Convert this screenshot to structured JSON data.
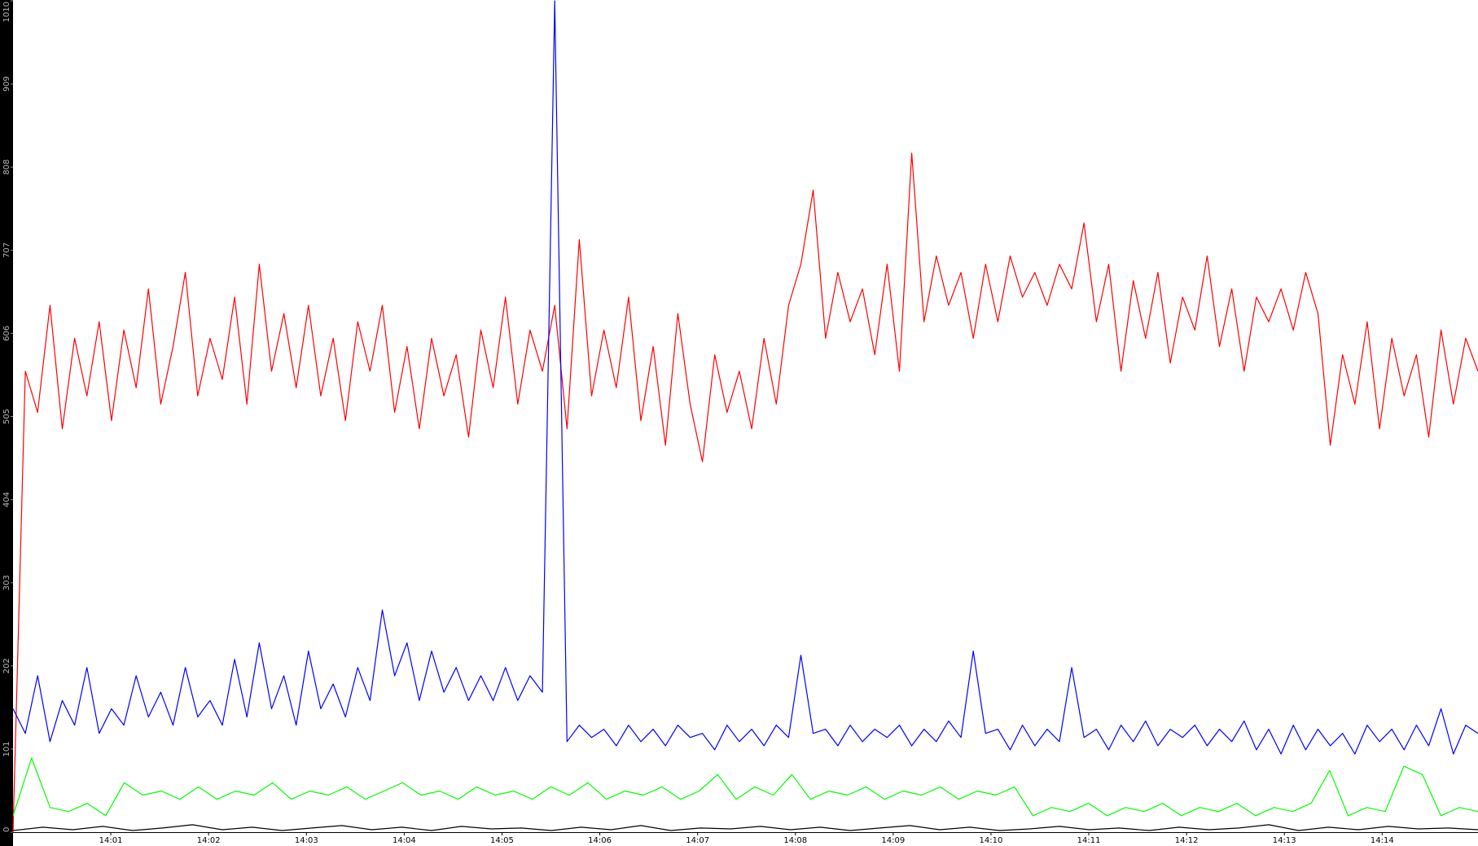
{
  "chart_data": {
    "type": "line",
    "xlim": [
      0,
      14.98
    ],
    "xticks": [
      {
        "value": 1,
        "label": "14:01"
      },
      {
        "value": 2,
        "label": "14:02"
      },
      {
        "value": 3,
        "label": "14:03"
      },
      {
        "value": 4,
        "label": "14:04"
      },
      {
        "value": 5,
        "label": "14:05"
      },
      {
        "value": 6,
        "label": "14:06"
      },
      {
        "value": 7,
        "label": "14:07"
      },
      {
        "value": 8,
        "label": "14:08"
      },
      {
        "value": 9,
        "label": "14:09"
      },
      {
        "value": 10,
        "label": "14:10"
      },
      {
        "value": 11,
        "label": "14:11"
      },
      {
        "value": 12,
        "label": "14:12"
      },
      {
        "value": 13,
        "label": "14:13"
      },
      {
        "value": 14,
        "label": "14:14"
      }
    ],
    "ylim": [
      0,
      1010
    ],
    "yticks": [
      0,
      101,
      202,
      303,
      404,
      505,
      606,
      707,
      808,
      909,
      1010
    ],
    "grid": false,
    "series": [
      {
        "color": "#ff0000",
        "values": [
          0,
          560,
          510,
          640,
          490,
          600,
          530,
          620,
          500,
          610,
          540,
          660,
          520,
          590,
          680,
          530,
          600,
          550,
          650,
          520,
          690,
          560,
          630,
          540,
          640,
          530,
          600,
          500,
          620,
          560,
          640,
          510,
          590,
          490,
          600,
          530,
          580,
          480,
          610,
          540,
          650,
          520,
          610,
          560,
          640,
          490,
          720,
          530,
          610,
          540,
          650,
          500,
          590,
          470,
          630,
          520,
          450,
          580,
          510,
          560,
          490,
          600,
          520,
          640,
          690,
          780,
          600,
          680,
          620,
          660,
          580,
          690,
          560,
          825,
          620,
          700,
          640,
          680,
          600,
          690,
          620,
          700,
          650,
          680,
          640,
          690,
          660,
          740,
          620,
          690,
          560,
          670,
          600,
          680,
          570,
          650,
          610,
          700,
          590,
          660,
          560,
          650,
          620,
          660,
          610,
          680,
          630,
          470,
          580,
          520,
          620,
          490,
          600,
          530,
          580,
          480,
          610,
          520,
          600,
          560
        ]
      },
      {
        "color": "#0000ff",
        "values": [
          150,
          120,
          190,
          110,
          160,
          130,
          200,
          120,
          150,
          130,
          190,
          140,
          170,
          130,
          200,
          140,
          160,
          130,
          210,
          140,
          230,
          150,
          190,
          130,
          220,
          150,
          180,
          140,
          200,
          160,
          270,
          190,
          230,
          160,
          220,
          170,
          200,
          160,
          190,
          160,
          200,
          160,
          190,
          170,
          1010,
          110,
          130,
          115,
          125,
          105,
          130,
          110,
          125,
          105,
          130,
          115,
          120,
          100,
          130,
          110,
          125,
          105,
          130,
          115,
          215,
          120,
          125,
          105,
          130,
          110,
          125,
          115,
          130,
          105,
          125,
          110,
          135,
          115,
          220,
          120,
          125,
          100,
          130,
          105,
          125,
          110,
          200,
          115,
          125,
          100,
          130,
          110,
          135,
          105,
          125,
          115,
          130,
          105,
          125,
          110,
          135,
          100,
          125,
          95,
          130,
          100,
          125,
          105,
          120,
          95,
          130,
          110,
          125,
          100,
          130,
          105,
          150,
          95,
          130,
          120
        ]
      },
      {
        "color": "#00ff00",
        "values": [
          20,
          90,
          30,
          25,
          35,
          20,
          60,
          45,
          50,
          40,
          55,
          40,
          50,
          45,
          60,
          40,
          50,
          45,
          55,
          40,
          50,
          60,
          45,
          50,
          40,
          55,
          45,
          50,
          40,
          55,
          45,
          60,
          40,
          50,
          45,
          55,
          40,
          50,
          70,
          40,
          55,
          45,
          70,
          40,
          50,
          45,
          55,
          40,
          50,
          45,
          55,
          40,
          50,
          45,
          55,
          20,
          30,
          25,
          35,
          20,
          30,
          25,
          35,
          20,
          30,
          25,
          35,
          20,
          30,
          25,
          35,
          75,
          20,
          30,
          25,
          80,
          70,
          20,
          30,
          25
        ]
      },
      {
        "color": "#000000",
        "values": [
          2,
          6,
          3,
          7,
          2,
          5,
          9,
          3,
          6,
          2,
          5,
          8,
          3,
          6,
          2,
          7,
          4,
          5,
          2,
          6,
          3,
          8,
          2,
          5,
          4,
          7,
          3,
          6,
          2,
          5,
          8,
          3,
          6,
          2,
          4,
          7,
          3,
          5,
          2,
          6,
          3,
          5,
          9,
          2,
          6,
          3,
          7,
          4,
          5,
          3
        ]
      }
    ]
  }
}
